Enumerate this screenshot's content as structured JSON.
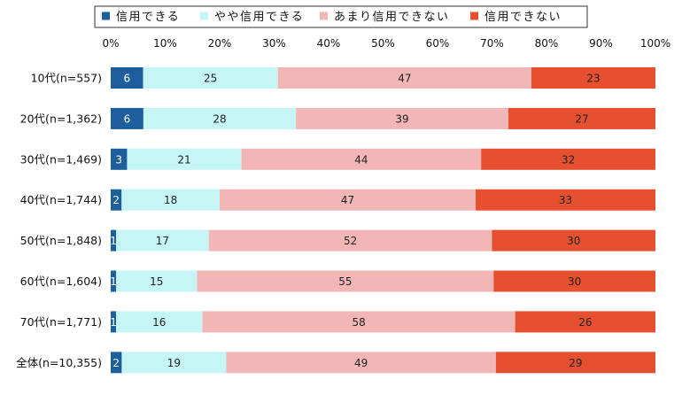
{
  "chart_data": {
    "type": "bar",
    "orientation": "horizontal",
    "stacked": "percent",
    "categories": [
      "10代(n=557)",
      "20代(n=1,362)",
      "30代(n=1,469)",
      "40代(n=1,744)",
      "50代(n=1,848)",
      "60代(n=1,604)",
      "70代(n=1,771)",
      "全体(n=10,355)"
    ],
    "series": [
      {
        "name": "信用できる",
        "color": "#1c5f9c",
        "label_color": "#ffffff",
        "values": [
          6,
          6,
          3,
          2,
          1,
          1,
          1,
          2
        ]
      },
      {
        "name": "やや信用できる",
        "color": "#c6f5f6",
        "label_color": "#222222",
        "values": [
          25,
          28,
          21,
          18,
          17,
          15,
          16,
          19
        ]
      },
      {
        "name": "あまり信用できない",
        "color": "#f3b6b6",
        "label_color": "#222222",
        "values": [
          47,
          39,
          44,
          47,
          52,
          55,
          58,
          49
        ]
      },
      {
        "name": "信用できない",
        "color": "#e64f30",
        "label_color": "#222222",
        "values": [
          23,
          27,
          32,
          33,
          30,
          30,
          26,
          29
        ]
      }
    ],
    "x_ticks": [
      "0%",
      "10%",
      "20%",
      "30%",
      "40%",
      "50%",
      "60%",
      "70%",
      "80%",
      "90%",
      "100%"
    ],
    "xlim": [
      0,
      100
    ],
    "grid": false,
    "legend_position": "top"
  }
}
